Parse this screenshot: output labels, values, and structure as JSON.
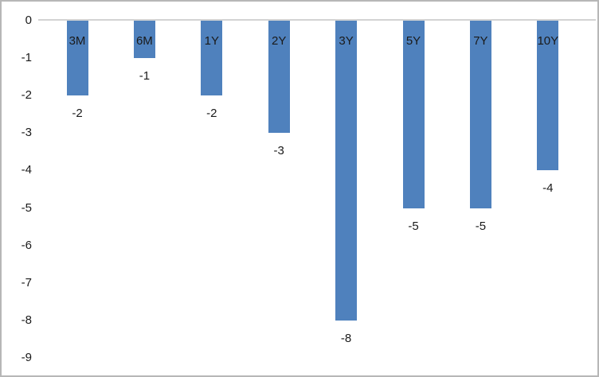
{
  "window": {
    "background": "#ffffff",
    "border_color": "#b7b7b7"
  },
  "chart_data": {
    "type": "bar",
    "title": "",
    "xlabel": "",
    "ylabel": "",
    "categories": [
      "3M",
      "6M",
      "1Y",
      "2Y",
      "3Y",
      "5Y",
      "7Y",
      "10Y"
    ],
    "values": [
      -2,
      -1,
      -2,
      -3,
      -8,
      -5,
      -5,
      -4
    ],
    "data_labels": [
      "-2",
      "-1",
      "-2",
      "-3",
      "-8",
      "-5",
      "-5",
      "-4"
    ],
    "y_ticks": [
      "0",
      "-1",
      "-2",
      "-3",
      "-4",
      "-5",
      "-6",
      "-7",
      "-8",
      "-9"
    ],
    "ylim": [
      -9,
      0
    ],
    "grid": false,
    "legend": false,
    "bar_color": "#4f81bd",
    "axis_line_color": "#d3d3d3",
    "label_color": "#1a1a1a"
  }
}
